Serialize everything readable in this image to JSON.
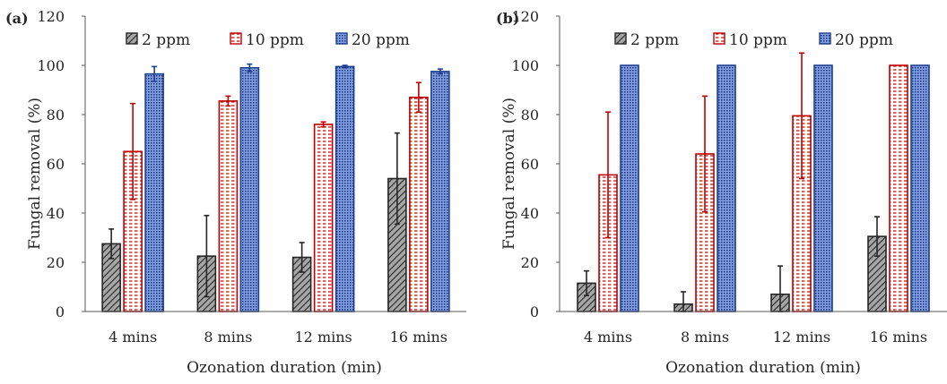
{
  "chart_data": [
    {
      "type": "bar",
      "panel_label": "(a)",
      "categories": [
        "4 mins",
        "8 mins",
        "12 mins",
        "16 mins"
      ],
      "xlabel": "Ozonation duration (min)",
      "ylabel": "Fungal removal (%)",
      "ylim": [
        0,
        120
      ],
      "yticks": [
        "0",
        "20",
        "40",
        "60",
        "80",
        "100",
        "120"
      ],
      "grid": false,
      "legend_position": "top",
      "series": [
        {
          "name": "2 ppm",
          "values": [
            27.5,
            22.5,
            22,
            54
          ],
          "errors": [
            6,
            16.5,
            6,
            18.5
          ]
        },
        {
          "name": "10 ppm",
          "values": [
            65,
            85.5,
            76,
            87
          ],
          "errors": [
            19.5,
            2,
            1,
            6
          ]
        },
        {
          "name": "20 ppm",
          "values": [
            96.5,
            99,
            99.5,
            97.5
          ],
          "errors": [
            3,
            1.5,
            0.5,
            1
          ]
        }
      ]
    },
    {
      "type": "bar",
      "panel_label": "(b)",
      "categories": [
        "4 mins",
        "8 mins",
        "12 mins",
        "16 mins"
      ],
      "xlabel": "Ozonation duration (min)",
      "ylabel": "Fungal removal (%)",
      "ylim": [
        0,
        120
      ],
      "yticks": [
        "0",
        "20",
        "40",
        "60",
        "80",
        "100",
        "120"
      ],
      "grid": false,
      "legend_position": "top",
      "series": [
        {
          "name": "2 ppm",
          "values": [
            11.5,
            3,
            7,
            30.5
          ],
          "errors": [
            5,
            5,
            11.5,
            8
          ]
        },
        {
          "name": "10 ppm",
          "values": [
            55.5,
            64,
            79.5,
            100
          ],
          "errors": [
            25.5,
            23.5,
            25.5,
            0
          ]
        },
        {
          "name": "20 ppm",
          "values": [
            100,
            100,
            100,
            100
          ],
          "errors": [
            0,
            0,
            0,
            0
          ]
        }
      ]
    }
  ],
  "colors": {
    "2 ppm": {
      "stroke": "#262626",
      "fill": "#a6a6a6",
      "hatch": "#262626"
    },
    "10 ppm": {
      "stroke": "#c00000",
      "fill": "#ffffff",
      "hatch": "#c00000"
    },
    "20 ppm": {
      "stroke": "#1f3f8f",
      "fill": "#6a8fd8",
      "hatch": "#1a2f80"
    }
  }
}
